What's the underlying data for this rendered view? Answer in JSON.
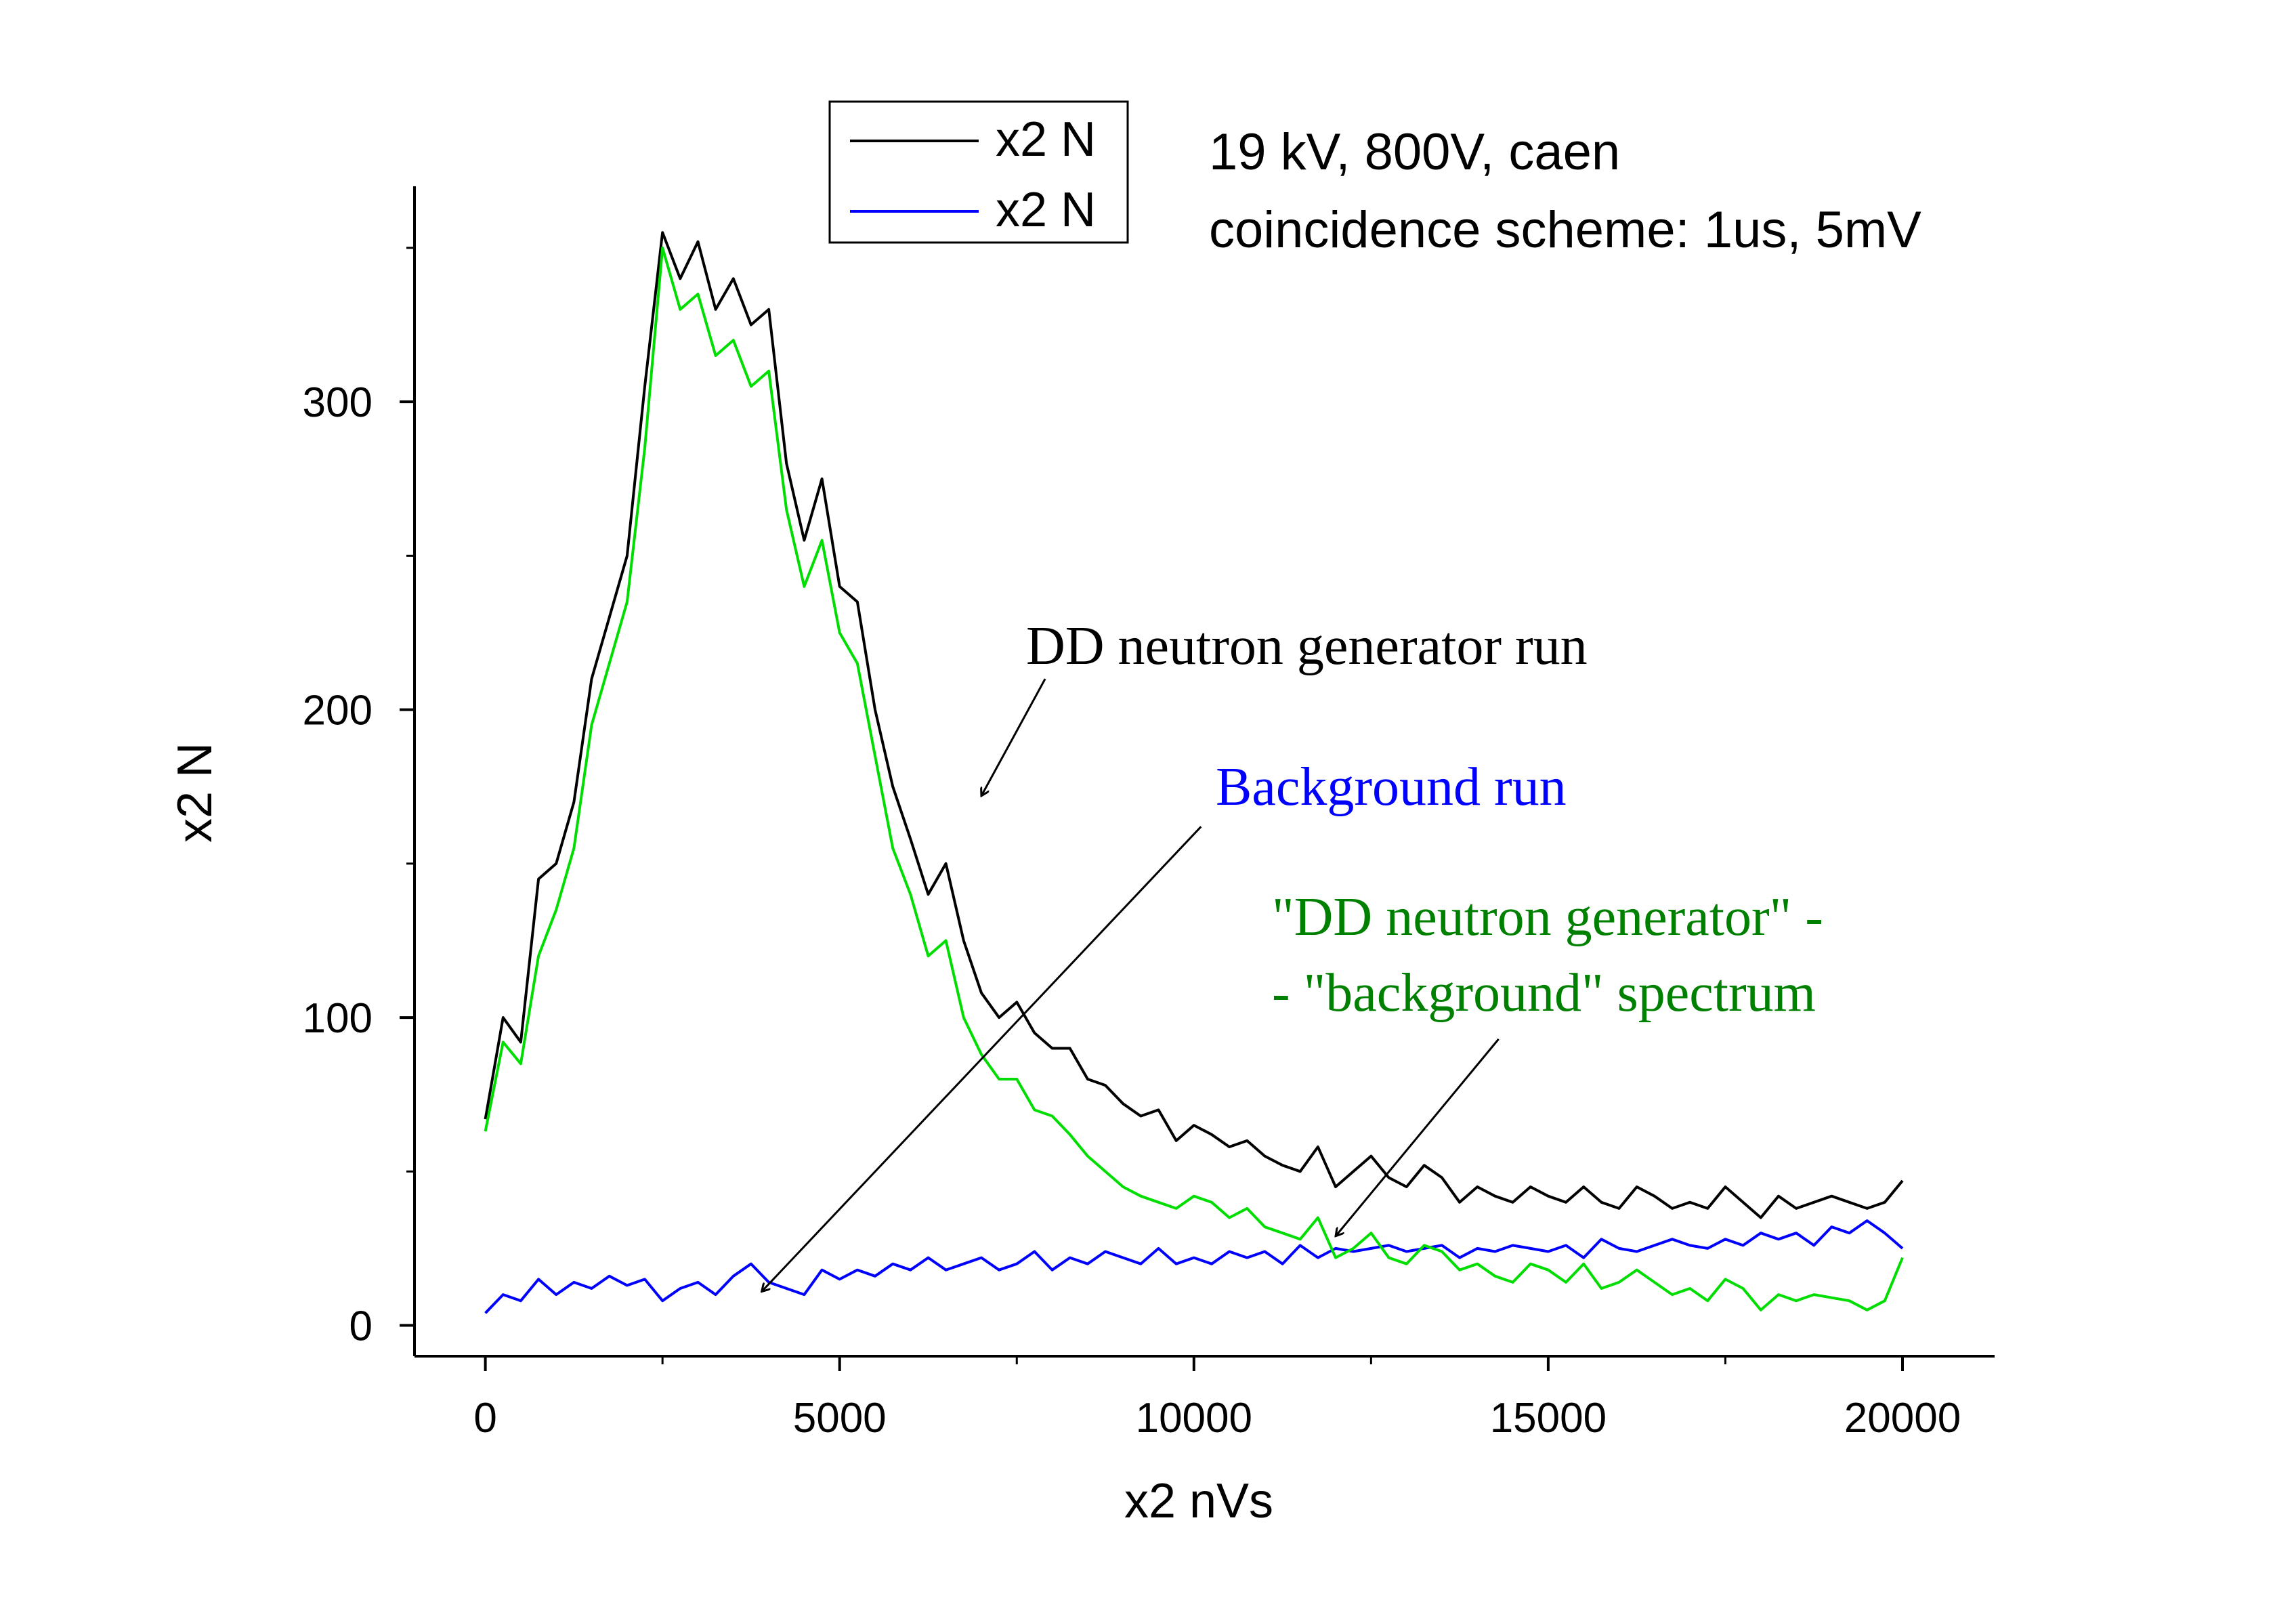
{
  "chart_data": {
    "type": "line",
    "title": "",
    "xlabel": "x2 nVs",
    "ylabel": "x2 N",
    "xlim": [
      -1000,
      21300
    ],
    "ylim": [
      -10,
      370
    ],
    "xticks": [
      0,
      5000,
      10000,
      15000,
      20000
    ],
    "xtick_labels": [
      "0",
      "5000",
      "10000",
      "15000",
      "20000"
    ],
    "yticks": [
      0,
      100,
      200,
      300
    ],
    "ytick_labels": [
      "0",
      "100",
      "200",
      "300"
    ],
    "grid": false,
    "legend": {
      "placement": "top-left",
      "entries": [
        {
          "label": "x2 N",
          "color": "#000000"
        },
        {
          "label": "x2 N",
          "color": "#0000ff"
        }
      ]
    },
    "info_text": [
      "19 kV, 800V, caen",
      "coincidence scheme: 1us, 5mV"
    ],
    "annotations": [
      {
        "id": "dd",
        "text": [
          "DD neutron generator run"
        ],
        "color": "#000000",
        "arrow_from": [
          7900,
          210
        ],
        "arrow_to": [
          7000,
          172
        ]
      },
      {
        "id": "bg",
        "text": [
          "Background run"
        ],
        "color": "#0000ff",
        "arrow_from": [
          10100,
          162
        ],
        "arrow_to": [
          3900,
          11
        ]
      },
      {
        "id": "diff",
        "text": [
          "\"DD neutron generator\" -",
          "- \"background\" spectrum"
        ],
        "color": "#008000",
        "arrow_from": [
          14300,
          93
        ],
        "arrow_to": [
          12000,
          29
        ]
      }
    ],
    "series": [
      {
        "name": "x2 N",
        "color": "#000000",
        "x": [
          0,
          250,
          500,
          750,
          1000,
          1250,
          1500,
          1750,
          2000,
          2250,
          2500,
          2750,
          3000,
          3250,
          3500,
          3750,
          4000,
          4250,
          4500,
          4750,
          5000,
          5250,
          5500,
          5750,
          6000,
          6250,
          6500,
          6750,
          7000,
          7250,
          7500,
          7750,
          8000,
          8250,
          8500,
          8750,
          9000,
          9250,
          9500,
          9750,
          10000,
          10250,
          10500,
          10750,
          11000,
          11250,
          11500,
          11750,
          12000,
          12250,
          12500,
          12750,
          13000,
          13250,
          13500,
          13750,
          14000,
          14250,
          14500,
          14750,
          15000,
          15250,
          15500,
          15750,
          16000,
          16250,
          16500,
          16750,
          17000,
          17250,
          17500,
          17750,
          18000,
          18250,
          18500,
          18750,
          19000,
          19250,
          19500,
          19750,
          20000
        ],
        "values": [
          67,
          100,
          92,
          145,
          150,
          170,
          210,
          230,
          250,
          305,
          355,
          340,
          352,
          330,
          340,
          325,
          330,
          280,
          255,
          275,
          240,
          235,
          200,
          175,
          158,
          140,
          150,
          125,
          108,
          100,
          105,
          95,
          90,
          90,
          80,
          78,
          72,
          68,
          70,
          60,
          65,
          62,
          58,
          60,
          55,
          52,
          50,
          58,
          45,
          50,
          55,
          48,
          45,
          52,
          48,
          40,
          45,
          42,
          40,
          45,
          42,
          40,
          45,
          40,
          38,
          45,
          42,
          38,
          40,
          38,
          45,
          40,
          35,
          42,
          38,
          40,
          42,
          40,
          38,
          40,
          47
        ]
      },
      {
        "name": "x2 N",
        "color": "#0000ff",
        "x": [
          0,
          250,
          500,
          750,
          1000,
          1250,
          1500,
          1750,
          2000,
          2250,
          2500,
          2750,
          3000,
          3250,
          3500,
          3750,
          4000,
          4250,
          4500,
          4750,
          5000,
          5250,
          5500,
          5750,
          6000,
          6250,
          6500,
          6750,
          7000,
          7250,
          7500,
          7750,
          8000,
          8250,
          8500,
          8750,
          9000,
          9250,
          9500,
          9750,
          10000,
          10250,
          10500,
          10750,
          11000,
          11250,
          11500,
          11750,
          12000,
          12250,
          12500,
          12750,
          13000,
          13250,
          13500,
          13750,
          14000,
          14250,
          14500,
          14750,
          15000,
          15250,
          15500,
          15750,
          16000,
          16250,
          16500,
          16750,
          17000,
          17250,
          17500,
          17750,
          18000,
          18250,
          18500,
          18750,
          19000,
          19250,
          19500,
          19750,
          20000
        ],
        "values": [
          4,
          10,
          8,
          15,
          10,
          14,
          12,
          16,
          13,
          15,
          8,
          12,
          14,
          10,
          16,
          20,
          14,
          12,
          10,
          18,
          15,
          18,
          16,
          20,
          18,
          22,
          18,
          20,
          22,
          18,
          20,
          24,
          18,
          22,
          20,
          24,
          22,
          20,
          25,
          20,
          22,
          20,
          24,
          22,
          24,
          20,
          26,
          22,
          25,
          24,
          25,
          26,
          24,
          25,
          26,
          22,
          25,
          24,
          26,
          25,
          24,
          26,
          22,
          28,
          25,
          24,
          26,
          28,
          26,
          25,
          28,
          26,
          30,
          28,
          30,
          26,
          32,
          30,
          34,
          30,
          25
        ]
      },
      {
        "name": "",
        "color": "#00dd00",
        "x": [
          0,
          250,
          500,
          750,
          1000,
          1250,
          1500,
          1750,
          2000,
          2250,
          2500,
          2750,
          3000,
          3250,
          3500,
          3750,
          4000,
          4250,
          4500,
          4750,
          5000,
          5250,
          5500,
          5750,
          6000,
          6250,
          6500,
          6750,
          7000,
          7250,
          7500,
          7750,
          8000,
          8250,
          8500,
          8750,
          9000,
          9250,
          9500,
          9750,
          10000,
          10250,
          10500,
          10750,
          11000,
          11250,
          11500,
          11750,
          12000,
          12250,
          12500,
          12750,
          13000,
          13250,
          13500,
          13750,
          14000,
          14250,
          14500,
          14750,
          15000,
          15250,
          15500,
          15750,
          16000,
          16250,
          16500,
          16750,
          17000,
          17250,
          17500,
          17750,
          18000,
          18250,
          18500,
          18750,
          19000,
          19250,
          19500,
          19750,
          20000
        ],
        "values": [
          63,
          92,
          85,
          120,
          135,
          155,
          195,
          215,
          235,
          285,
          350,
          330,
          335,
          315,
          320,
          305,
          310,
          265,
          240,
          255,
          225,
          215,
          185,
          155,
          140,
          120,
          125,
          100,
          88,
          80,
          80,
          70,
          68,
          62,
          55,
          50,
          45,
          42,
          40,
          38,
          42,
          40,
          35,
          38,
          32,
          30,
          28,
          35,
          22,
          25,
          30,
          22,
          20,
          26,
          24,
          18,
          20,
          16,
          14,
          20,
          18,
          14,
          20,
          12,
          14,
          18,
          14,
          10,
          12,
          8,
          15,
          12,
          5,
          10,
          8,
          10,
          9,
          8,
          5,
          8,
          22
        ]
      }
    ]
  }
}
